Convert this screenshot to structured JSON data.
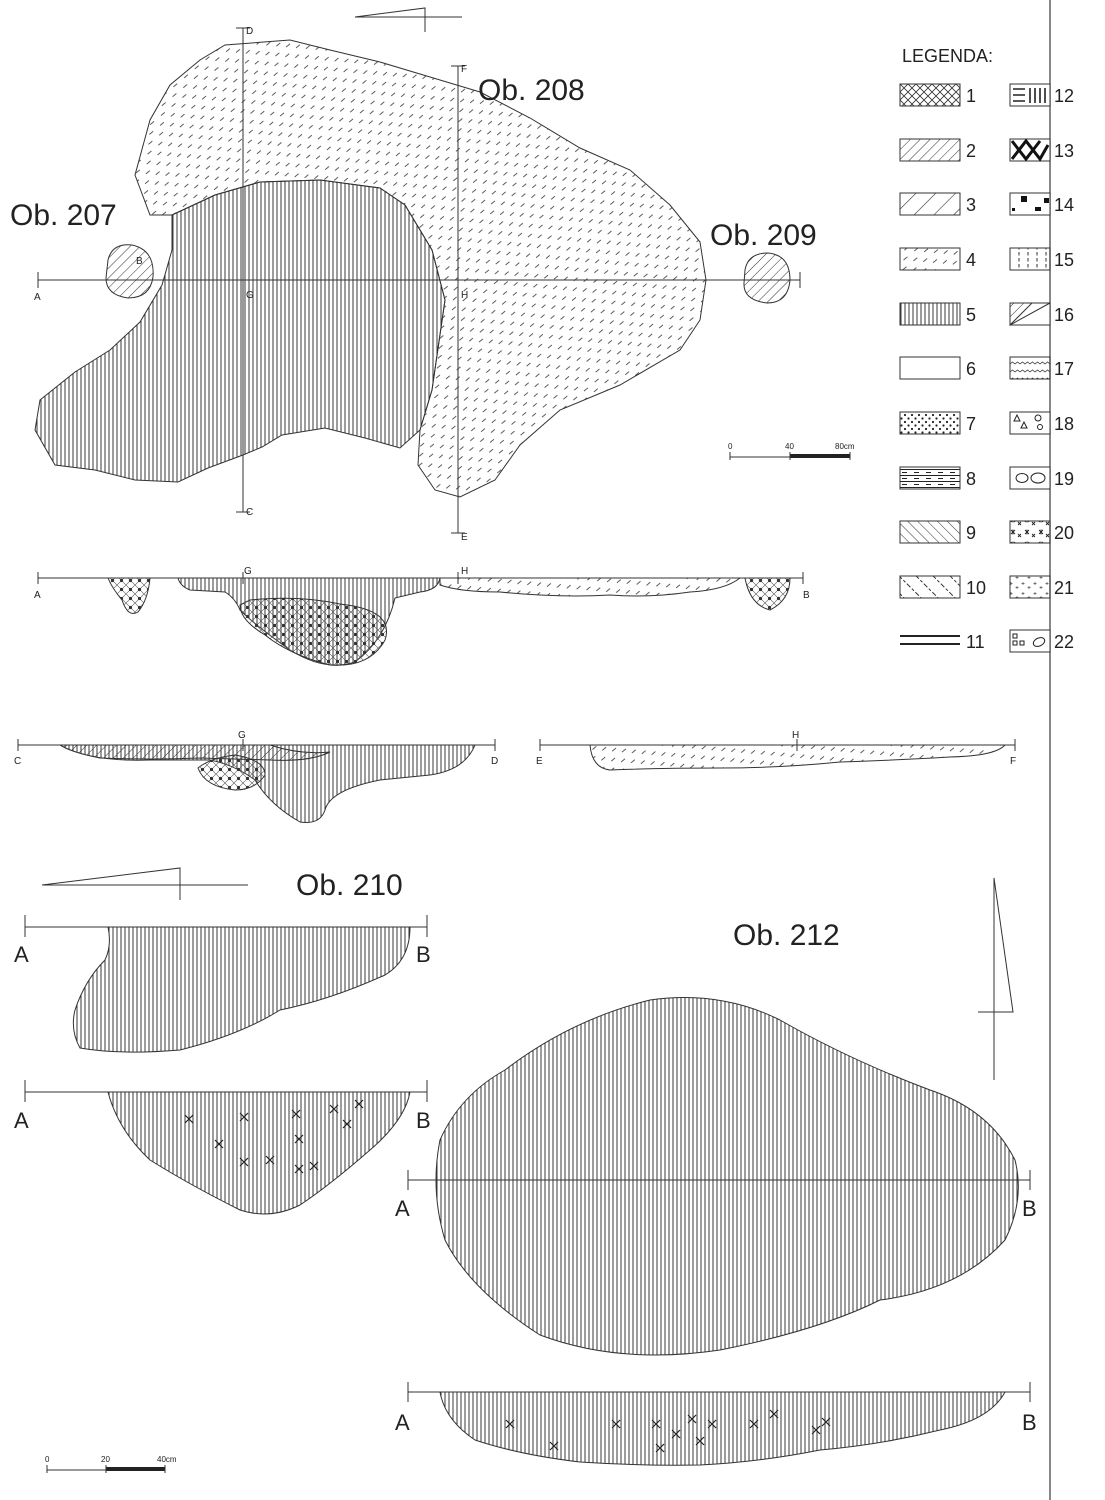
{
  "features": {
    "ob207": "Ob. 207",
    "ob208": "Ob. 208",
    "ob209": "Ob. 209",
    "ob210": "Ob. 210",
    "ob212": "Ob. 212"
  },
  "plan_labels": {
    "a": "A",
    "b": "B",
    "c": "C",
    "d": "D",
    "e": "E",
    "f": "F",
    "g": "G",
    "h": "H"
  },
  "section_ab": {
    "a": "A",
    "g": "G",
    "h": "H",
    "b": "B"
  },
  "section_cd": {
    "c": "C",
    "g": "G",
    "d": "D"
  },
  "section_ef": {
    "e": "E",
    "h": "H",
    "f": "F"
  },
  "ob210_labels": {
    "plan_a": "A",
    "plan_b": "B",
    "sec_a": "A",
    "sec_b": "B"
  },
  "ob212_labels": {
    "plan_a": "A",
    "plan_b": "B",
    "sec_a": "A",
    "sec_b": "B"
  },
  "scale_top": {
    "t0": "0",
    "t1": "40",
    "t2": "80cm"
  },
  "scale_bottom": {
    "t0": "0",
    "t1": "20",
    "t2": "40cm"
  },
  "legend": {
    "title": "LEGENDA:",
    "items": [
      {
        "label": "1",
        "pattern": "crosshatch"
      },
      {
        "label": "2",
        "pattern": "diagonal-dense"
      },
      {
        "label": "3",
        "pattern": "diagonal-sparse"
      },
      {
        "label": "4",
        "pattern": "dashes"
      },
      {
        "label": "5",
        "pattern": "vertical"
      },
      {
        "label": "6",
        "pattern": "empty"
      },
      {
        "label": "7",
        "pattern": "dots"
      },
      {
        "label": "8",
        "pattern": "horizontal-dashed"
      },
      {
        "label": "9",
        "pattern": "backslash"
      },
      {
        "label": "10",
        "pattern": "backslash-dashed"
      },
      {
        "label": "11",
        "pattern": "double-line"
      },
      {
        "label": "12",
        "pattern": "mixed-lines"
      },
      {
        "label": "13",
        "pattern": "zigzag-bold"
      },
      {
        "label": "14",
        "pattern": "black-squares"
      },
      {
        "label": "15",
        "pattern": "dotted-vertical"
      },
      {
        "label": "16",
        "pattern": "diagonal-half"
      },
      {
        "label": "17",
        "pattern": "wavy"
      },
      {
        "label": "18",
        "pattern": "triangles-stones"
      },
      {
        "label": "19",
        "pattern": "pebbles"
      },
      {
        "label": "20",
        "pattern": "asterisks"
      },
      {
        "label": "21",
        "pattern": "plus-signs"
      },
      {
        "label": "22",
        "pattern": "squares-shell"
      }
    ]
  }
}
